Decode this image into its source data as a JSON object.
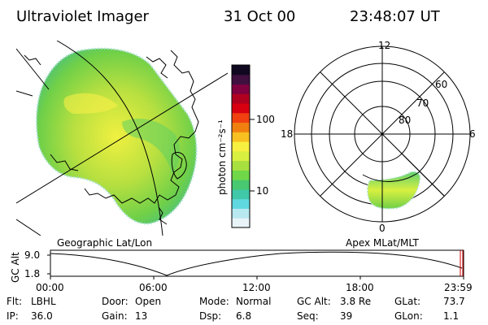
{
  "header": {
    "title": "Ultraviolet Imager",
    "date": "31 Oct 00",
    "time": "23:48:07 UT"
  },
  "geo_panel": {
    "label": "Geographic Lat/Lon"
  },
  "polar_panel": {
    "label": "Apex MLat/MLT",
    "mlt_labels": [
      "12",
      "18",
      "6",
      "0"
    ],
    "lat_labels": [
      "60",
      "70",
      "80"
    ]
  },
  "colorbar": {
    "unit": "photon cm⁻²s⁻¹",
    "tick_labels": [
      "100",
      "10"
    ],
    "colors": [
      "#e8f4f8",
      "#b8e8f0",
      "#60d8e0",
      "#40c8a8",
      "#48c870",
      "#70d848",
      "#a8e040",
      "#d8f040",
      "#f8f040",
      "#f8c020",
      "#f08010",
      "#f04010",
      "#d80010",
      "#b00020",
      "#800040",
      "#401040",
      "#100820"
    ]
  },
  "altitude_plot": {
    "ylabel": "GC Alt",
    "y_ticks": [
      "9.0",
      "1.8"
    ],
    "x_ticks": [
      "00:00",
      "06:00",
      "12:00",
      "18:00",
      "23:59"
    ]
  },
  "info": [
    {
      "label": "Flt:",
      "value": "LBHL"
    },
    {
      "label": "Door:",
      "value": "Open"
    },
    {
      "label": "Mode:",
      "value": "Normal"
    },
    {
      "label": "GC Alt:",
      "value": "3.8 Re"
    },
    {
      "label": "GLat:",
      "value": "73.7"
    },
    {
      "label": "IP:",
      "value": "36.0"
    },
    {
      "label": "Gain:",
      "value": "13"
    },
    {
      "label": "Dsp:",
      "value": "6.8"
    },
    {
      "label": "Seq:",
      "value": "39"
    },
    {
      "label": "GLon:",
      "value": "1.1"
    }
  ]
}
